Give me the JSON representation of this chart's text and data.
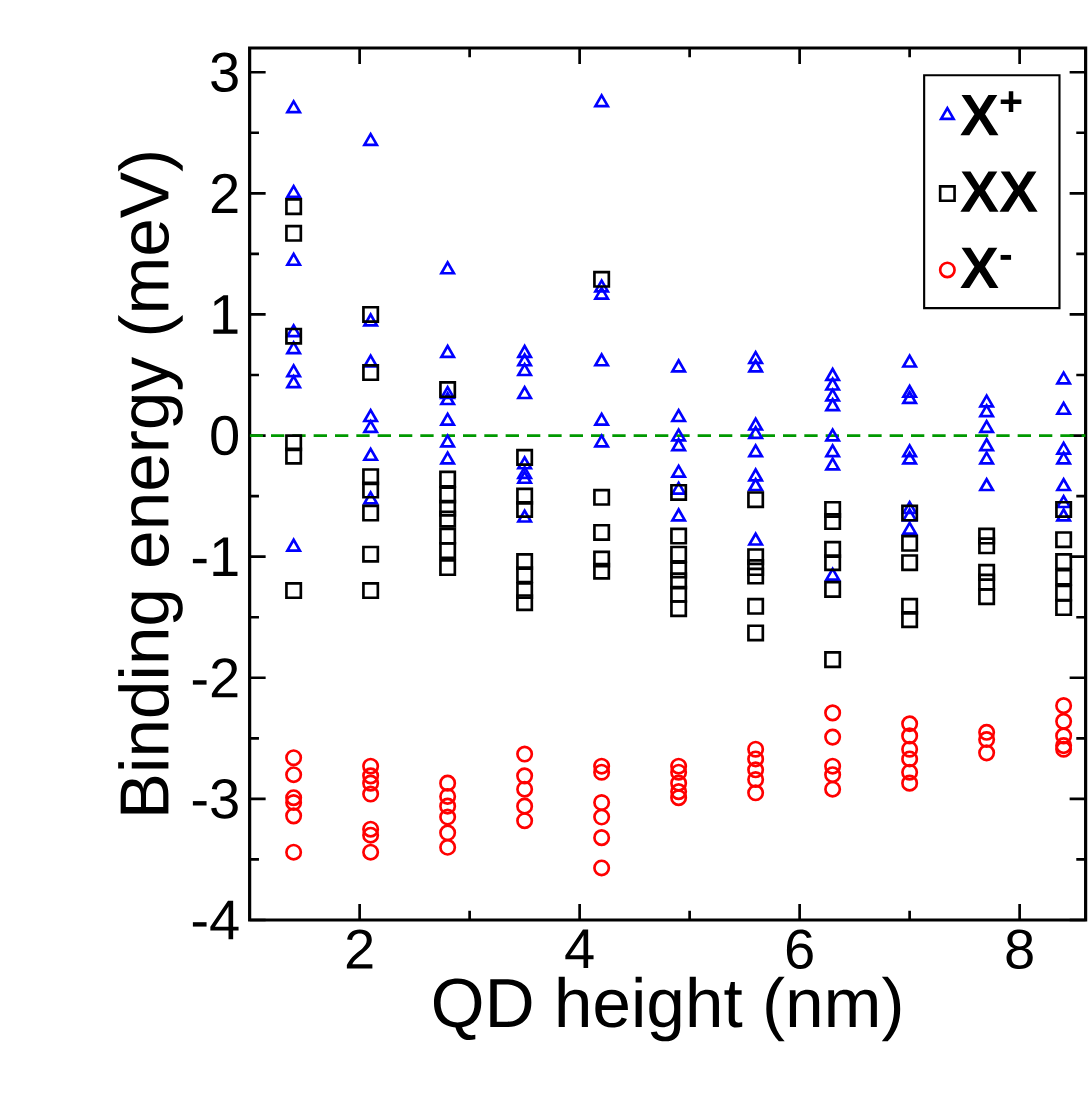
{
  "chart_data": {
    "type": "scatter",
    "xlabel": "QD height (nm)",
    "ylabel": "Binding energy (meV)",
    "xlim": [
      1,
      8.6
    ],
    "ylim": [
      -4,
      3.2
    ],
    "xticks": [
      2,
      4,
      6,
      8
    ],
    "yticks": [
      -4,
      -3,
      -2,
      -1,
      0,
      1,
      2,
      3
    ],
    "grid": false,
    "legend": "top right",
    "ref_lines": [
      {
        "axis": "y",
        "value": 0,
        "color": "#009900",
        "line_style": "dashed"
      }
    ],
    "series": [
      {
        "name": "X$^{+}$",
        "color": "#0000ff",
        "marker": "triangle",
        "x": [
          1.4,
          1.4,
          1.4,
          1.4,
          1.4,
          1.4,
          1.4,
          1.4,
          2.1,
          2.1,
          2.1,
          2.1,
          2.1,
          2.1,
          2.1,
          2.8,
          2.8,
          2.8,
          2.8,
          2.8,
          2.8,
          2.8,
          3.5,
          3.5,
          3.5,
          3.5,
          3.5,
          3.5,
          3.5,
          3.5,
          4.2,
          4.2,
          4.2,
          4.2,
          4.2,
          4.2,
          4.9,
          4.9,
          4.9,
          4.9,
          4.9,
          4.9,
          4.9,
          5.6,
          5.6,
          5.6,
          5.6,
          5.6,
          5.6,
          5.6,
          5.6,
          6.3,
          6.3,
          6.3,
          6.3,
          6.3,
          6.3,
          6.3,
          6.3,
          7.0,
          7.0,
          7.0,
          7.0,
          7.0,
          7.0,
          7.0,
          7.0,
          7.7,
          7.7,
          7.7,
          7.7,
          7.7,
          7.7,
          8.4,
          8.4,
          8.4,
          8.4,
          8.4,
          8.4,
          8.4
        ],
        "values": [
          2.7,
          2.0,
          1.44,
          0.85,
          0.71,
          0.52,
          0.43,
          -0.92,
          2.43,
          0.94,
          0.6,
          0.15,
          0.06,
          -0.17,
          -0.53,
          1.37,
          0.68,
          0.34,
          0.29,
          0.12,
          -0.06,
          -0.2,
          0.68,
          0.61,
          0.53,
          0.34,
          -0.24,
          -0.32,
          -0.36,
          -0.68,
          2.75,
          1.22,
          1.16,
          0.61,
          0.12,
          -0.06,
          0.56,
          0.15,
          -0.01,
          -0.09,
          -0.31,
          -0.45,
          -0.67,
          0.63,
          0.56,
          0.08,
          0.01,
          -0.14,
          -0.34,
          -0.42,
          -0.87,
          0.49,
          0.41,
          0.32,
          0.24,
          -0.01,
          -0.14,
          -0.25,
          -1.16,
          0.6,
          0.35,
          0.3,
          -0.14,
          -0.2,
          -0.61,
          -0.67,
          -0.78,
          0.27,
          0.19,
          0.06,
          -0.09,
          -0.2,
          -0.42,
          0.46,
          0.21,
          -0.12,
          -0.2,
          -0.42,
          -0.56,
          -0.67
        ]
      },
      {
        "name": "XX",
        "color": "#000000",
        "marker": "square",
        "x": [
          1.4,
          1.4,
          1.4,
          1.4,
          1.4,
          1.4,
          2.1,
          2.1,
          2.1,
          2.1,
          2.1,
          2.1,
          2.1,
          2.8,
          2.8,
          2.8,
          2.8,
          2.8,
          2.8,
          2.8,
          2.8,
          3.5,
          3.5,
          3.5,
          3.5,
          3.5,
          3.5,
          3.5,
          4.2,
          4.2,
          4.2,
          4.2,
          4.2,
          4.9,
          4.9,
          4.9,
          4.9,
          4.9,
          4.9,
          4.9,
          5.6,
          5.6,
          5.6,
          5.6,
          5.6,
          5.6,
          6.3,
          6.3,
          6.3,
          6.3,
          6.3,
          6.3,
          7.0,
          7.0,
          7.0,
          7.0,
          7.0,
          7.7,
          7.7,
          7.7,
          7.7,
          7.7,
          8.4,
          8.4,
          8.4,
          8.4,
          8.4,
          8.4
        ],
        "values": [
          1.89,
          1.67,
          0.82,
          -0.06,
          -0.17,
          -1.28,
          1.0,
          0.52,
          -0.34,
          -0.45,
          -0.64,
          -0.98,
          -1.28,
          0.38,
          -0.36,
          -0.49,
          -0.6,
          -0.69,
          -0.83,
          -0.95,
          -1.09,
          -0.18,
          -0.5,
          -0.61,
          -1.04,
          -1.15,
          -1.28,
          -1.38,
          1.29,
          -0.51,
          -0.8,
          -1.02,
          -1.12,
          -0.47,
          -0.83,
          -0.98,
          -1.11,
          -1.2,
          -1.31,
          -1.43,
          -0.53,
          -1.0,
          -1.09,
          -1.16,
          -1.41,
          -1.63,
          -0.61,
          -0.71,
          -0.94,
          -1.05,
          -1.27,
          -1.85,
          -0.64,
          -0.89,
          -1.05,
          -1.41,
          -1.52,
          -0.83,
          -0.91,
          -1.13,
          -1.21,
          -1.33,
          -0.61,
          -0.86,
          -1.04,
          -1.17,
          -1.3,
          -1.42
        ]
      },
      {
        "name": "X$^{-}$",
        "color": "#ff0000",
        "marker": "circle",
        "x": [
          1.4,
          1.4,
          1.4,
          1.4,
          1.4,
          1.4,
          2.1,
          2.1,
          2.1,
          2.1,
          2.1,
          2.1,
          2.1,
          2.8,
          2.8,
          2.8,
          2.8,
          2.8,
          2.8,
          3.5,
          3.5,
          3.5,
          3.5,
          3.5,
          4.2,
          4.2,
          4.2,
          4.2,
          4.2,
          4.2,
          4.9,
          4.9,
          4.9,
          4.9,
          4.9,
          5.6,
          5.6,
          5.6,
          5.6,
          5.6,
          6.3,
          6.3,
          6.3,
          6.3,
          6.3,
          7.0,
          7.0,
          7.0,
          7.0,
          7.0,
          7.0,
          7.7,
          7.7,
          7.7,
          8.4,
          8.4,
          8.4,
          8.4,
          8.4
        ],
        "values": [
          -2.66,
          -2.8,
          -2.99,
          -3.03,
          -3.14,
          -3.44,
          -2.73,
          -2.81,
          -2.87,
          -2.96,
          -3.25,
          -3.3,
          -3.44,
          -2.87,
          -2.98,
          -3.06,
          -3.15,
          -3.28,
          -3.4,
          -2.63,
          -2.81,
          -2.92,
          -3.06,
          -3.18,
          -2.73,
          -2.78,
          -3.03,
          -3.15,
          -3.32,
          -3.57,
          -2.73,
          -2.78,
          -2.87,
          -2.94,
          -2.99,
          -2.59,
          -2.67,
          -2.76,
          -2.84,
          -2.95,
          -2.29,
          -2.49,
          -2.73,
          -2.8,
          -2.92,
          -2.38,
          -2.48,
          -2.59,
          -2.67,
          -2.78,
          -2.87,
          -2.45,
          -2.51,
          -2.62,
          -2.23,
          -2.36,
          -2.48,
          -2.56,
          -2.59
        ]
      }
    ]
  }
}
